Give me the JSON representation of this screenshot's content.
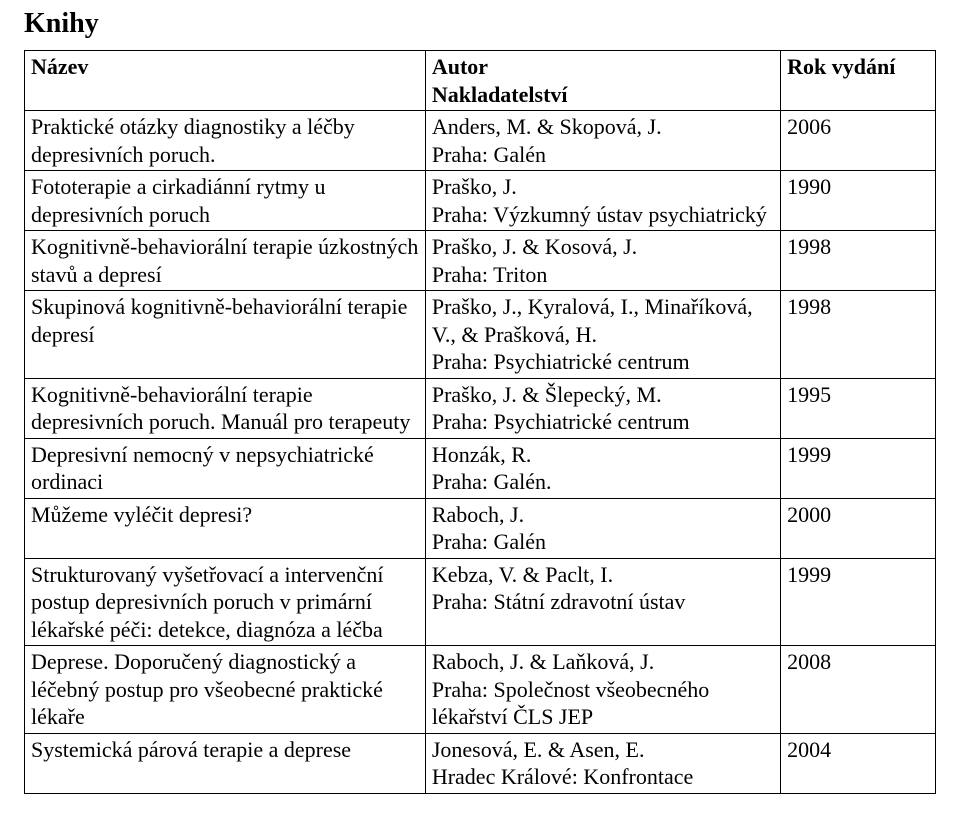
{
  "heading": "Knihy",
  "table": {
    "headers": {
      "name": "Název",
      "author_line1": "Autor",
      "author_line2": "Nakladatelství",
      "year": "Rok vydání"
    },
    "rows": [
      {
        "name": "Praktické otázky diagnostiky a léčby depresivních poruch.",
        "author": "Anders, M. & Skopová, J.",
        "publisher": "Praha: Galén",
        "year": "2006"
      },
      {
        "name": "Fototerapie a cirkadiánní rytmy u depresivních poruch",
        "author": "Praško, J.",
        "publisher": "Praha: Výzkumný ústav psychiatrický",
        "year": "1990"
      },
      {
        "name": "Kognitivně-behaviorální terapie úzkostných stavů a depresí",
        "author": "Praško, J. & Kosová, J.",
        "publisher": "Praha: Triton",
        "year": "1998"
      },
      {
        "name": "Skupinová kognitivně-behaviorální terapie depresí",
        "author": "Praško, J., Kyralová, I., Minaříková, V., & Prašková, H.",
        "publisher": "Praha: Psychiatrické centrum",
        "year": "1998"
      },
      {
        "name": "Kognitivně-behaviorální terapie depresivních poruch. Manuál pro terapeuty",
        "author": "Praško, J. & Šlepecký, M.",
        "publisher": "Praha: Psychiatrické centrum",
        "year": "1995"
      },
      {
        "name": "Depresivní nemocný v nepsychiatrické ordinaci",
        "author": "Honzák, R.",
        "publisher": "Praha: Galén.",
        "year": "1999"
      },
      {
        "name": "Můžeme vyléčit depresi?",
        "author": "Raboch, J.",
        "publisher": "Praha: Galén",
        "year": "2000"
      },
      {
        "name": "Strukturovaný vyšetřovací a intervenční postup depresivních poruch v primární lékařské péči: detekce, diagnóza a léčba",
        "author": "Kebza, V. & Paclt, I.",
        "publisher": "Praha: Státní zdravotní ústav",
        "year": "1999"
      },
      {
        "name": "Deprese. Doporučený diagnostický a léčebný postup pro všeobecné praktické lékaře",
        "author": "Raboch, J. & Laňková, J.",
        "publisher": "Praha: Společnost všeobecného lékařství ČLS JEP",
        "year": "2008"
      },
      {
        "name": "Systemická párová terapie a deprese",
        "author": "Jonesová, E. & Asen, E.",
        "publisher": "Hradec Králové: Konfrontace",
        "year": "2004"
      }
    ]
  }
}
